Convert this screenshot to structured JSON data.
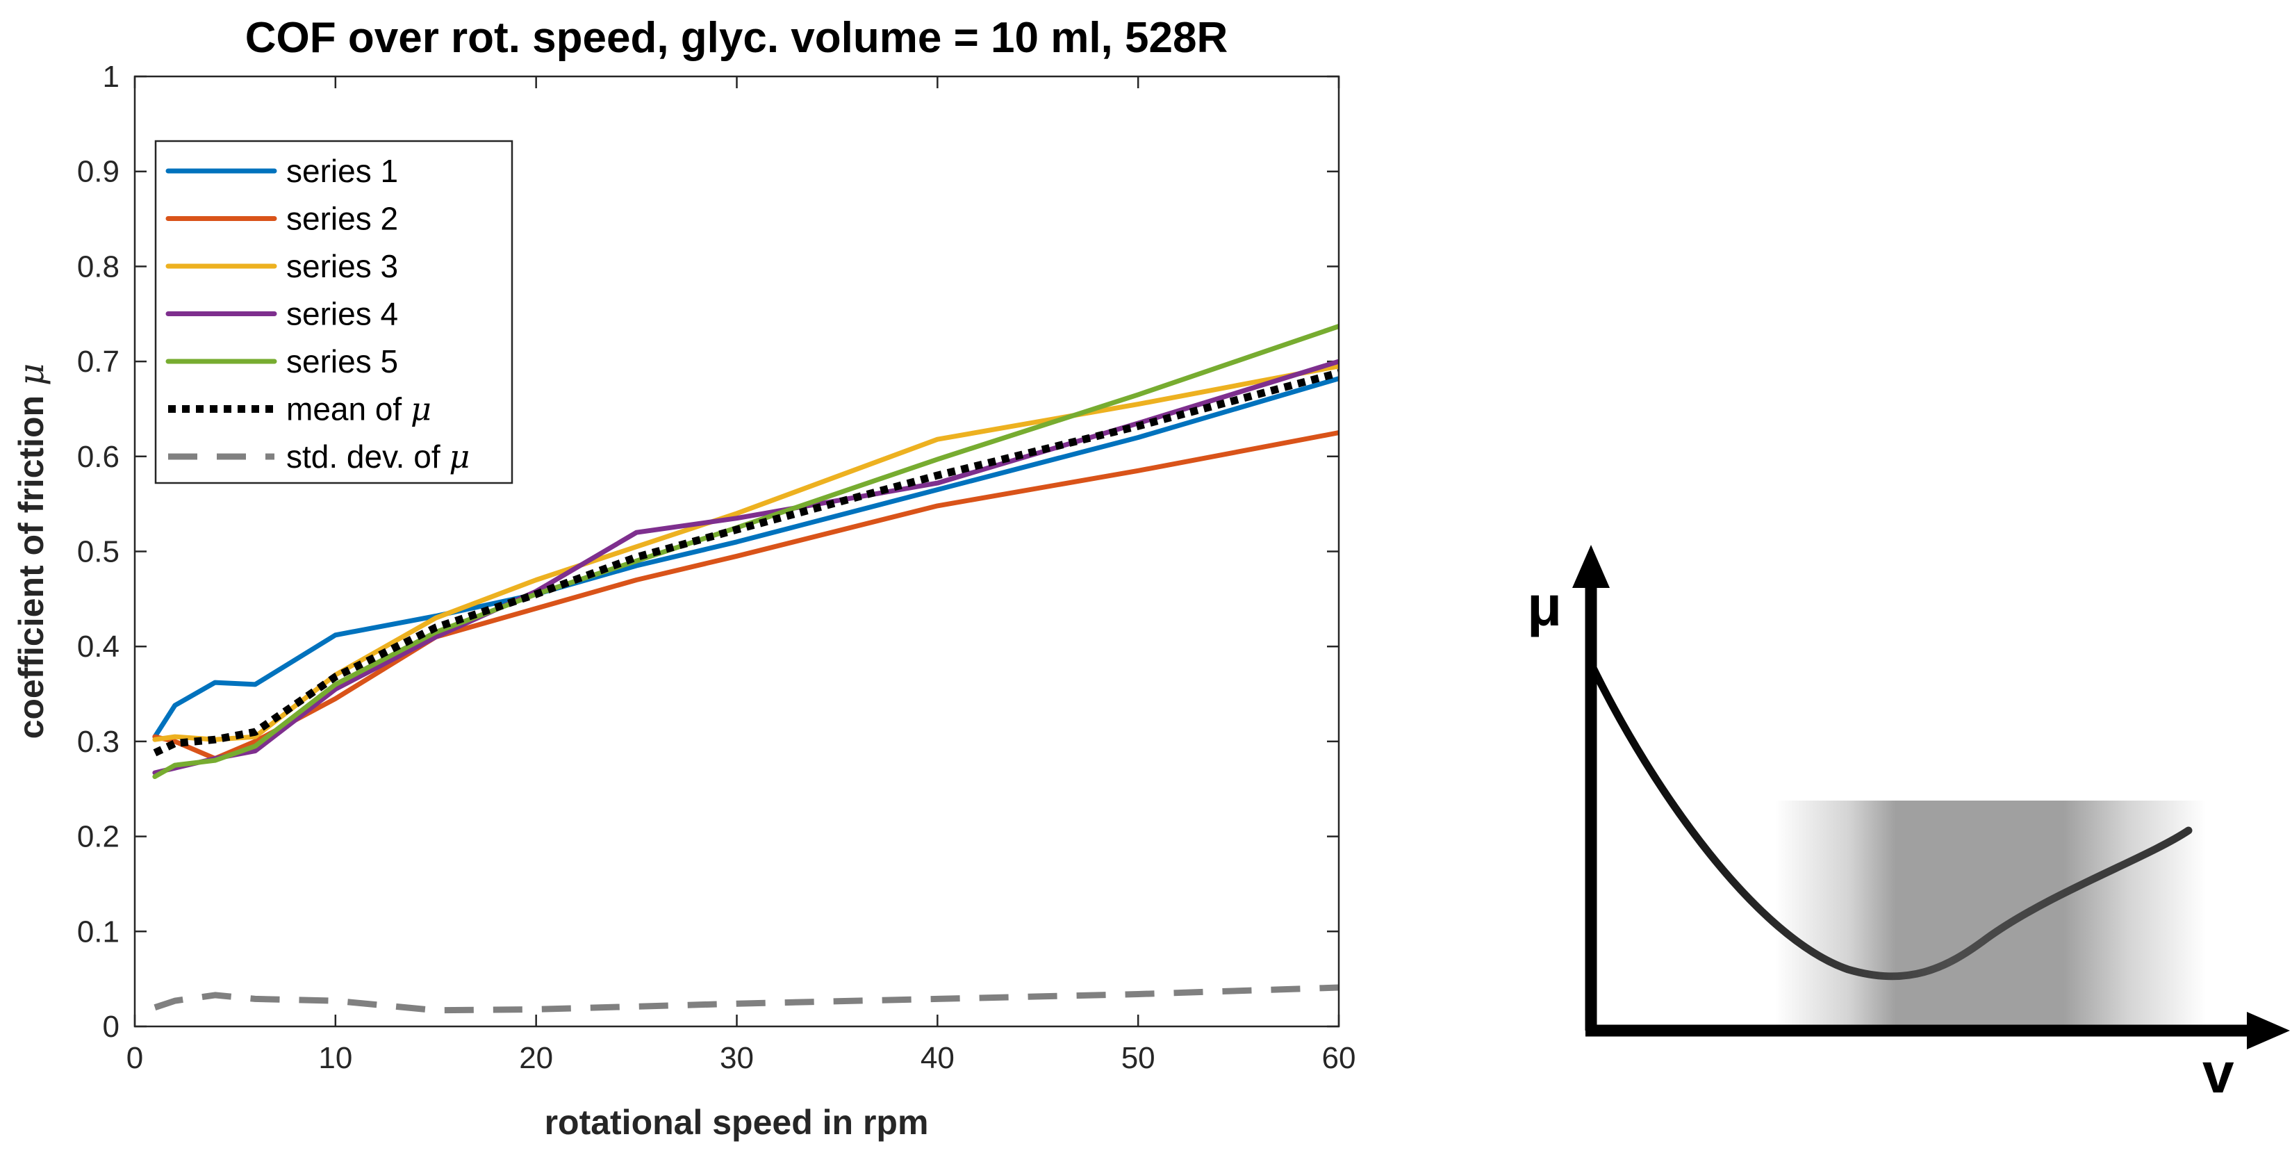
{
  "chart_data": [
    {
      "type": "line",
      "title": "COF over rot. speed, glyc. volume = 10 ml, 528R",
      "xlabel": "rotational speed in rpm",
      "ylabel_text": "coefficient of friction ",
      "ylabel_symbol": "μ",
      "xlim": [
        0,
        60
      ],
      "ylim": [
        0,
        1
      ],
      "xticks": [
        0,
        10,
        20,
        30,
        40,
        50,
        60
      ],
      "yticks": [
        0,
        0.1,
        0.2,
        0.3,
        0.4,
        0.5,
        0.6,
        0.7,
        0.8,
        0.9,
        1
      ],
      "ytick_labels": [
        "0",
        "0.1",
        "0.2",
        "0.3",
        "0.4",
        "0.5",
        "0.6",
        "0.7",
        "0.8",
        "0.9",
        "1"
      ],
      "legend_position": "top-left",
      "grid": false,
      "series": [
        {
          "name": "series 1",
          "color": "#0072BD",
          "style": "solid",
          "points": [
            [
              1,
              0.305
            ],
            [
              2,
              0.338
            ],
            [
              4,
              0.362
            ],
            [
              6,
              0.36
            ],
            [
              10,
              0.412
            ],
            [
              15,
              0.432
            ],
            [
              20,
              0.455
            ],
            [
              25,
              0.485
            ],
            [
              30,
              0.51
            ],
            [
              40,
              0.565
            ],
            [
              50,
              0.62
            ],
            [
              60,
              0.682
            ]
          ]
        },
        {
          "name": "series 2",
          "color": "#D95319",
          "style": "solid",
          "points": [
            [
              1,
              0.305
            ],
            [
              2,
              0.3
            ],
            [
              4,
              0.282
            ],
            [
              6,
              0.3
            ],
            [
              10,
              0.345
            ],
            [
              15,
              0.41
            ],
            [
              20,
              0.44
            ],
            [
              25,
              0.47
            ],
            [
              30,
              0.495
            ],
            [
              40,
              0.548
            ],
            [
              50,
              0.585
            ],
            [
              60,
              0.625
            ]
          ]
        },
        {
          "name": "series 3",
          "color": "#EDB120",
          "style": "solid",
          "points": [
            [
              1,
              0.302
            ],
            [
              2,
              0.305
            ],
            [
              4,
              0.302
            ],
            [
              6,
              0.305
            ],
            [
              10,
              0.37
            ],
            [
              15,
              0.43
            ],
            [
              20,
              0.47
            ],
            [
              25,
              0.505
            ],
            [
              30,
              0.54
            ],
            [
              40,
              0.618
            ],
            [
              50,
              0.655
            ],
            [
              60,
              0.695
            ]
          ]
        },
        {
          "name": "series 4",
          "color": "#7E2F8E",
          "style": "solid",
          "points": [
            [
              1,
              0.267
            ],
            [
              2,
              0.272
            ],
            [
              4,
              0.282
            ],
            [
              6,
              0.29
            ],
            [
              10,
              0.355
            ],
            [
              15,
              0.41
            ],
            [
              20,
              0.458
            ],
            [
              25,
              0.52
            ],
            [
              30,
              0.535
            ],
            [
              40,
              0.572
            ],
            [
              50,
              0.635
            ],
            [
              60,
              0.7
            ]
          ]
        },
        {
          "name": "series 5",
          "color": "#77AC30",
          "style": "solid",
          "points": [
            [
              1,
              0.263
            ],
            [
              2,
              0.275
            ],
            [
              4,
              0.28
            ],
            [
              6,
              0.295
            ],
            [
              10,
              0.36
            ],
            [
              15,
              0.415
            ],
            [
              20,
              0.455
            ],
            [
              25,
              0.49
            ],
            [
              30,
              0.525
            ],
            [
              40,
              0.597
            ],
            [
              50,
              0.665
            ],
            [
              60,
              0.737
            ]
          ]
        },
        {
          "name": "mean of ",
          "name_symbol": "μ",
          "color": "#000000",
          "style": "dotted",
          "points": [
            [
              1,
              0.288
            ],
            [
              2,
              0.298
            ],
            [
              4,
              0.302
            ],
            [
              6,
              0.31
            ],
            [
              10,
              0.368
            ],
            [
              15,
              0.42
            ],
            [
              20,
              0.455
            ],
            [
              25,
              0.494
            ],
            [
              30,
              0.523
            ],
            [
              40,
              0.58
            ],
            [
              50,
              0.632
            ],
            [
              60,
              0.688
            ]
          ]
        },
        {
          "name": "std. dev. of ",
          "name_symbol": "μ",
          "color": "#808080",
          "style": "dashed",
          "points": [
            [
              1,
              0.02
            ],
            [
              2,
              0.027
            ],
            [
              4,
              0.033
            ],
            [
              6,
              0.029
            ],
            [
              10,
              0.027
            ],
            [
              15,
              0.017
            ],
            [
              20,
              0.018
            ],
            [
              25,
              0.021
            ],
            [
              30,
              0.024
            ],
            [
              40,
              0.029
            ],
            [
              50,
              0.034
            ],
            [
              60,
              0.041
            ]
          ]
        }
      ]
    },
    {
      "type": "diagram",
      "y_axis_label": "μ",
      "x_axis_label": "v",
      "colors": {
        "curve": "#000000",
        "band": "#a0a0a0"
      }
    }
  ]
}
